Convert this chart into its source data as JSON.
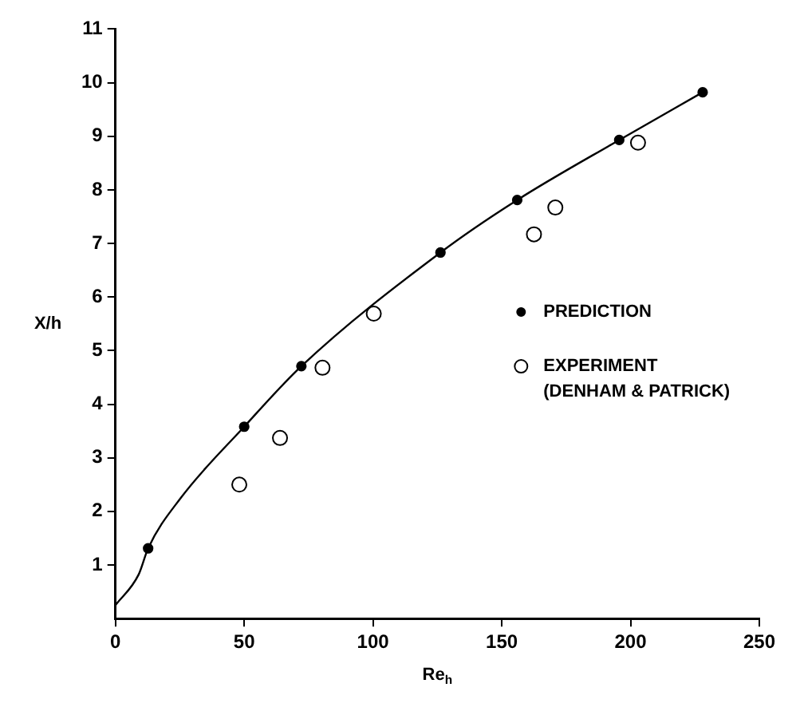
{
  "chart_data": {
    "type": "scatter",
    "xlabel": "Re$_{h}$",
    "ylabel": "X/h",
    "xlim": [
      0,
      250
    ],
    "xticks": [
      0,
      50,
      100,
      150,
      200,
      250
    ],
    "ylim": [
      0,
      11
    ],
    "yticks": [
      1,
      2,
      3,
      4,
      5,
      6,
      7,
      8,
      9,
      10,
      11
    ],
    "grid": false,
    "legend": "right",
    "series": [
      {
        "type": "line",
        "marker": "none",
        "color": "#000000",
        "x": [
          0,
          9,
          12.7,
          25.2,
          50,
          72.2,
          126.2,
          156,
          195.6,
          228
        ],
        "values": [
          0.25,
          0.82,
          1.31,
          2.24,
          3.58,
          4.71,
          6.83,
          7.81,
          8.93,
          9.82
        ]
      },
      {
        "name": "PREDICTION",
        "marker": "circle",
        "color": "#000000",
        "x": [
          12.7,
          50,
          72.2,
          126.2,
          156,
          195.6,
          228
        ],
        "values": [
          1.31,
          3.58,
          4.71,
          6.83,
          7.81,
          8.93,
          9.82
        ]
      },
      {
        "name": "EXPERIMENT (DENHAM & PATRICK)",
        "marker": "circle",
        "color": "#000000",
        "x": [
          48.1,
          63.9,
          80.4,
          100.3,
          162.5,
          170.8,
          202.9
        ],
        "values": [
          2.5,
          3.37,
          4.68,
          5.69,
          7.17,
          7.67,
          8.88
        ]
      }
    ]
  }
}
